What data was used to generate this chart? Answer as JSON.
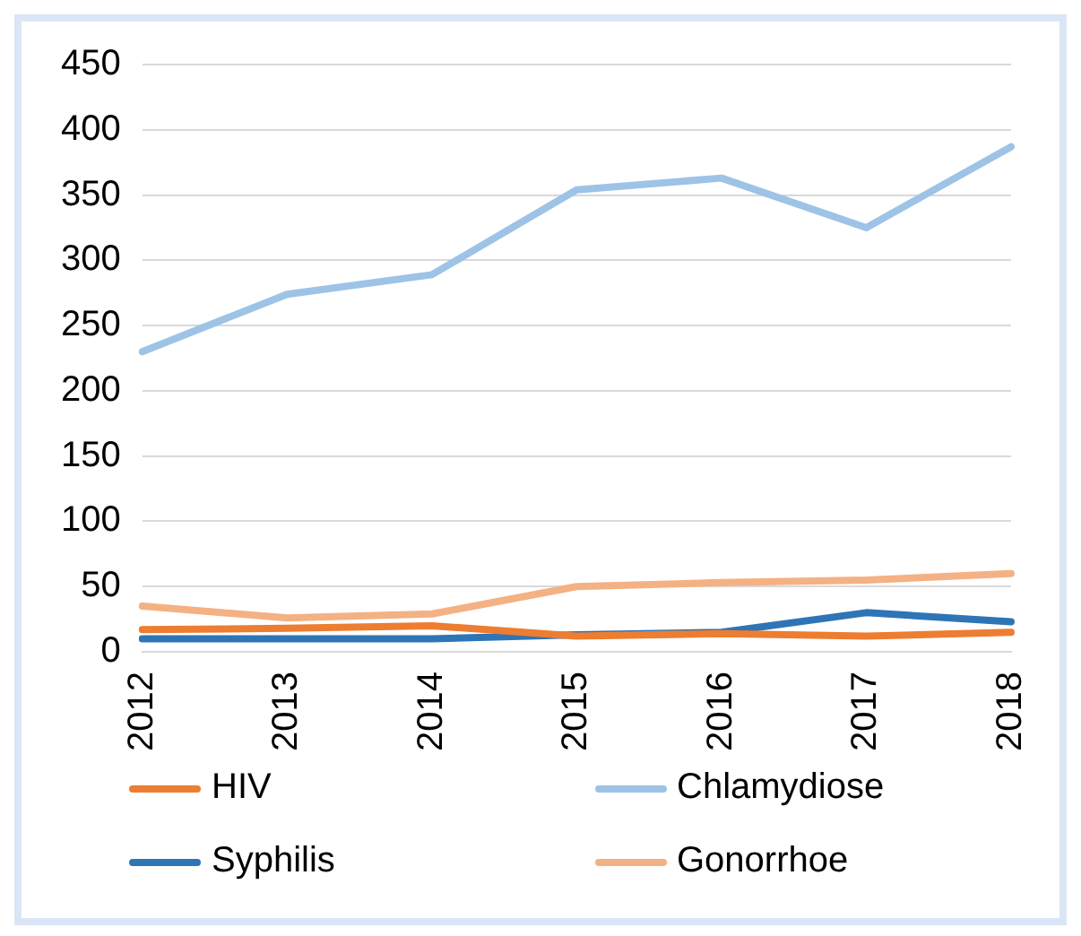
{
  "chart_data": {
    "type": "line",
    "categories": [
      "2012",
      "2013",
      "2014",
      "2015",
      "2016",
      "2017",
      "2018"
    ],
    "series": [
      {
        "name": "HIV",
        "color": "#ed7d31",
        "values": [
          17,
          18,
          20,
          12,
          14,
          12,
          15
        ]
      },
      {
        "name": "Chlamydiose",
        "color": "#9dc3e6",
        "values": [
          230,
          274,
          289,
          354,
          363,
          325,
          387
        ]
      },
      {
        "name": "Syphilis",
        "color": "#2e75b6",
        "values": [
          10,
          10,
          10,
          13,
          15,
          30,
          23
        ]
      },
      {
        "name": "Gonorrhoe",
        "color": "#f4b183",
        "values": [
          35,
          26,
          29,
          50,
          53,
          55,
          60
        ]
      }
    ],
    "ylim": [
      0,
      450
    ],
    "yticks": [
      0,
      50,
      100,
      150,
      200,
      250,
      300,
      350,
      400,
      450
    ],
    "grid": "y",
    "legend": "bottom",
    "marker": "none",
    "line_style": "solid"
  }
}
